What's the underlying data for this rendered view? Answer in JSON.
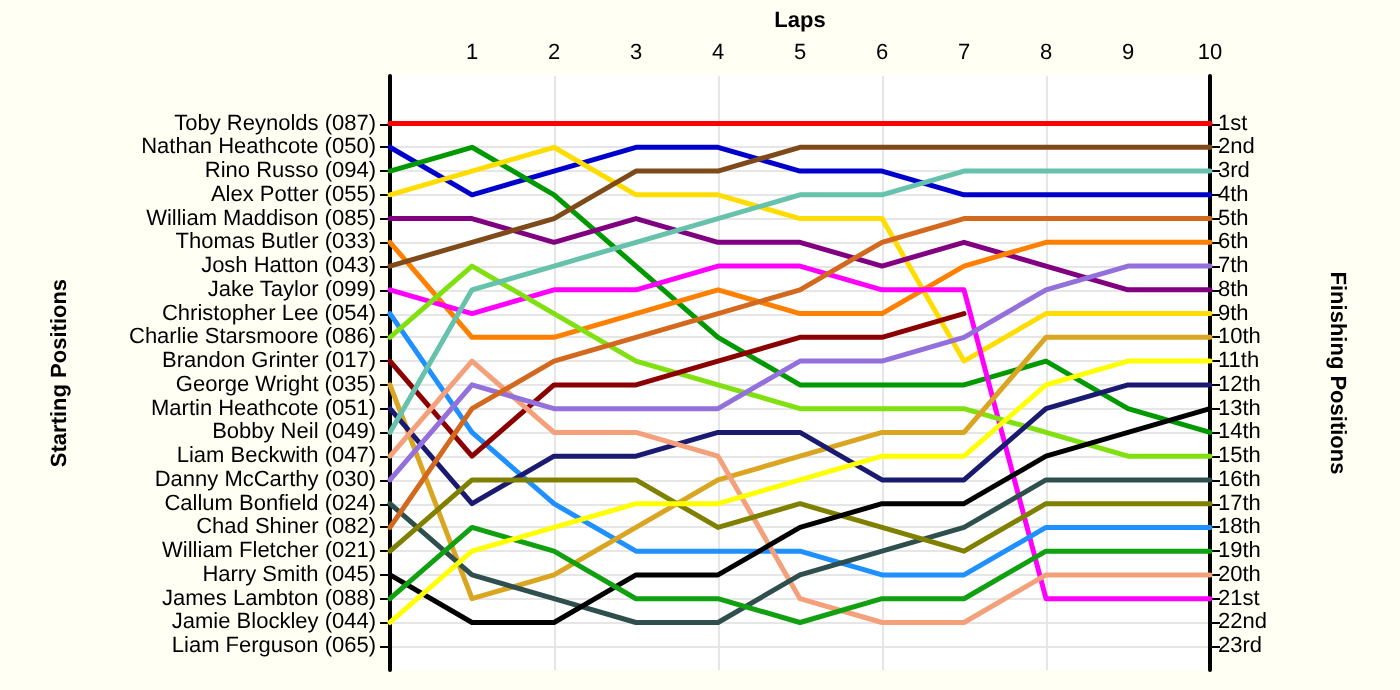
{
  "chart_data": {
    "type": "line",
    "xlabel": "Laps",
    "ylabel": "Finishing Positions",
    "x": [
      0,
      1,
      2,
      3,
      4,
      5,
      6,
      7,
      8,
      9,
      10
    ],
    "xlim": [
      0,
      10
    ],
    "xticks": [
      1,
      2,
      3,
      4,
      5,
      6,
      7,
      8,
      9,
      10
    ],
    "ylim": [
      24,
      -1
    ],
    "yticks": [
      {
        "value": 1,
        "label": "1st"
      },
      {
        "value": 2,
        "label": "2nd"
      },
      {
        "value": 3,
        "label": "3rd"
      },
      {
        "value": 4,
        "label": "4th"
      },
      {
        "value": 5,
        "label": "5th"
      },
      {
        "value": 6,
        "label": "6th"
      },
      {
        "value": 7,
        "label": "7th"
      },
      {
        "value": 8,
        "label": "8th"
      },
      {
        "value": 9,
        "label": "9th"
      },
      {
        "value": 10,
        "label": "10th"
      },
      {
        "value": 11,
        "label": "11th"
      },
      {
        "value": 12,
        "label": "12th"
      },
      {
        "value": 13,
        "label": "13th"
      },
      {
        "value": 14,
        "label": "14th"
      },
      {
        "value": 15,
        "label": "15th"
      },
      {
        "value": 16,
        "label": "16th"
      },
      {
        "value": 17,
        "label": "17th"
      },
      {
        "value": 18,
        "label": "18th"
      },
      {
        "value": 19,
        "label": "19th"
      },
      {
        "value": 20,
        "label": "20th"
      },
      {
        "value": 21,
        "label": "21st"
      },
      {
        "value": 22,
        "label": "22nd"
      },
      {
        "value": 23,
        "label": "23rd"
      }
    ],
    "annotations": [
      "Starting Positions",
      "Toby Reynolds (087)",
      "Nathan Heathcote (050)",
      "Rino Russo (094)",
      "Alex Potter (055)",
      "William Maddison (085)",
      "Thomas Butler (033)",
      "Josh Hatton (043)",
      "Jake Taylor (099)",
      "Christopher Lee (054)",
      "Charlie Starsmoore (086)",
      "Brandon Grinter (017)",
      "George Wright (035)",
      "Martin Heathcote (051)",
      "Bobby Neil (049)",
      "Liam Beckwith (047)",
      "Danny McCarthy (030)",
      "Callum Bonfield (024)",
      "Chad Shiner (082)",
      "William Fletcher (021)",
      "Harry Smith (045)",
      "James Lambton (088)",
      "Jamie Blockley (044)",
      "Liam Ferguson (065)"
    ],
    "grid": true,
    "marker": "none",
    "line_style": "solid",
    "series": [
      {
        "color": "#ff0000",
        "values": [
          1,
          1,
          1,
          1,
          1,
          1,
          1,
          1,
          1,
          1,
          1
        ]
      },
      {
        "color": "#0000cc",
        "values": [
          2,
          4,
          3,
          2,
          2,
          3,
          3,
          4,
          4,
          4,
          4
        ]
      },
      {
        "color": "#009900",
        "values": [
          3,
          2,
          4,
          7,
          10,
          12,
          12,
          12,
          11,
          13,
          14
        ]
      },
      {
        "color": "#ffdd00",
        "values": [
          4,
          3,
          2,
          4,
          4,
          5,
          5,
          11,
          9,
          9,
          9
        ]
      },
      {
        "color": "#800080",
        "values": [
          5,
          5,
          6,
          5,
          6,
          6,
          7,
          6,
          7,
          8,
          8
        ]
      },
      {
        "color": "#ff8000",
        "values": [
          6,
          10,
          10,
          9,
          8,
          9,
          9,
          7,
          6,
          6,
          6
        ]
      },
      {
        "color": "#7f4a1a",
        "values": [
          7,
          6,
          5,
          3,
          3,
          2,
          2,
          2,
          2,
          2,
          2
        ]
      },
      {
        "color": "#ff00ff",
        "values": [
          8,
          9,
          8,
          8,
          7,
          7,
          8,
          8,
          21,
          21,
          21
        ]
      },
      {
        "color": "#1e90ff",
        "values": [
          9,
          14,
          17,
          19,
          19,
          19,
          20,
          20,
          18,
          18,
          18
        ]
      },
      {
        "color": "#80e010",
        "values": [
          10,
          7,
          9,
          11,
          12,
          13,
          13,
          13,
          14,
          15,
          15
        ]
      },
      {
        "color": "#8b0000",
        "values": [
          11,
          15,
          12,
          12,
          11,
          10,
          10,
          9,
          null,
          null,
          null
        ]
      },
      {
        "color": "#daa520",
        "values": [
          12,
          21,
          20,
          18,
          16,
          15,
          14,
          14,
          10,
          10,
          10
        ]
      },
      {
        "color": "#1a1a70",
        "values": [
          13,
          17,
          15,
          15,
          14,
          14,
          16,
          16,
          13,
          12,
          12
        ]
      },
      {
        "color": "#66c2aa",
        "values": [
          14,
          8,
          7,
          6,
          5,
          4,
          4,
          3,
          3,
          3,
          3
        ]
      },
      {
        "color": "#f4a07a",
        "values": [
          15,
          11,
          14,
          14,
          15,
          21,
          22,
          22,
          20,
          20,
          20
        ]
      },
      {
        "color": "#9370db",
        "values": [
          16,
          12,
          13,
          13,
          13,
          11,
          11,
          10,
          8,
          7,
          7
        ]
      },
      {
        "color": "#2f4f4f",
        "values": [
          17,
          20,
          21,
          22,
          22,
          20,
          19,
          18,
          16,
          16,
          16
        ]
      },
      {
        "color": "#d2691e",
        "values": [
          18,
          13,
          11,
          10,
          9,
          8,
          6,
          5,
          5,
          5,
          5
        ]
      },
      {
        "color": "#808000",
        "values": [
          19,
          16,
          16,
          16,
          18,
          17,
          18,
          19,
          17,
          17,
          17
        ]
      },
      {
        "color": "#000000",
        "values": [
          20,
          22,
          22,
          20,
          20,
          18,
          17,
          17,
          15,
          14,
          13
        ]
      },
      {
        "color": "#10a010",
        "values": [
          21,
          18,
          19,
          21,
          21,
          22,
          21,
          21,
          19,
          19,
          19
        ]
      },
      {
        "color": "#ffff00",
        "values": [
          22,
          19,
          18,
          17,
          17,
          16,
          15,
          15,
          12,
          11,
          11
        ]
      }
    ]
  }
}
